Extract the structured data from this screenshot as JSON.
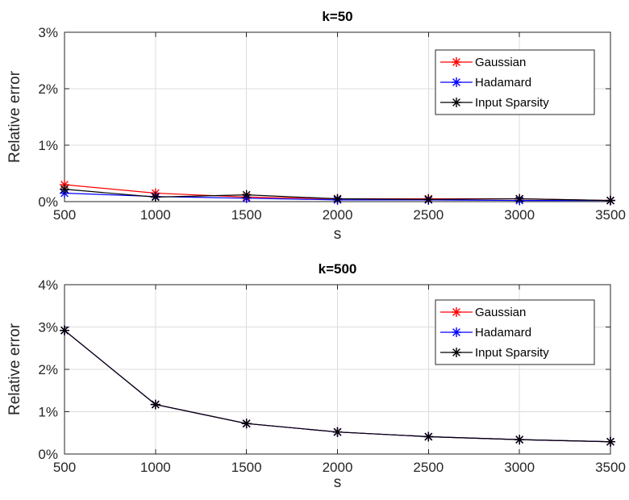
{
  "chart_data": [
    {
      "type": "line",
      "title": "k=50",
      "xlabel": "s",
      "ylabel": "Relative error",
      "x": [
        500,
        1000,
        1500,
        2000,
        2500,
        3000,
        3500
      ],
      "xticks": [
        "500",
        "1000",
        "1500",
        "2000",
        "2500",
        "3000",
        "3500"
      ],
      "xlim": [
        500,
        3500
      ],
      "ylim": [
        0,
        3
      ],
      "yticks": [
        0,
        1,
        2,
        3
      ],
      "ytick_labels": [
        "0%",
        "1%",
        "2%",
        "3%"
      ],
      "grid": true,
      "legend": "top-right",
      "series": [
        {
          "name": "Gaussian",
          "color": "#ff0000",
          "marker": "asterisk",
          "values": [
            0.3,
            0.15,
            0.08,
            0.05,
            0.05,
            0.05,
            0.02
          ]
        },
        {
          "name": "Hadamard",
          "color": "#0000ff",
          "marker": "asterisk",
          "values": [
            0.15,
            0.09,
            0.06,
            0.03,
            0.03,
            0.02,
            0.02
          ]
        },
        {
          "name": "Input Sparsity",
          "color": "#000000",
          "marker": "asterisk",
          "values": [
            0.22,
            0.08,
            0.12,
            0.05,
            0.04,
            0.05,
            0.02
          ]
        }
      ]
    },
    {
      "type": "line",
      "title": "k=500",
      "xlabel": "s",
      "ylabel": "Relative error",
      "x": [
        500,
        1000,
        1500,
        2000,
        2500,
        3000,
        3500
      ],
      "xticks": [
        "500",
        "1000",
        "1500",
        "2000",
        "2500",
        "3000",
        "3500"
      ],
      "xlim": [
        500,
        3500
      ],
      "ylim": [
        0,
        4
      ],
      "yticks": [
        0,
        1,
        2,
        3,
        4
      ],
      "ytick_labels": [
        "0%",
        "1%",
        "2%",
        "3%",
        "4%"
      ],
      "grid": true,
      "legend": "top-right",
      "series": [
        {
          "name": "Gaussian",
          "color": "#ff0000",
          "marker": "asterisk",
          "values": [
            2.92,
            1.17,
            0.72,
            0.52,
            0.41,
            0.34,
            0.29
          ]
        },
        {
          "name": "Hadamard",
          "color": "#0000ff",
          "marker": "asterisk",
          "values": [
            2.92,
            1.17,
            0.72,
            0.52,
            0.41,
            0.34,
            0.29
          ]
        },
        {
          "name": "Input Sparsity",
          "color": "#000000",
          "marker": "asterisk",
          "values": [
            2.92,
            1.17,
            0.72,
            0.52,
            0.41,
            0.34,
            0.29
          ]
        }
      ]
    }
  ]
}
